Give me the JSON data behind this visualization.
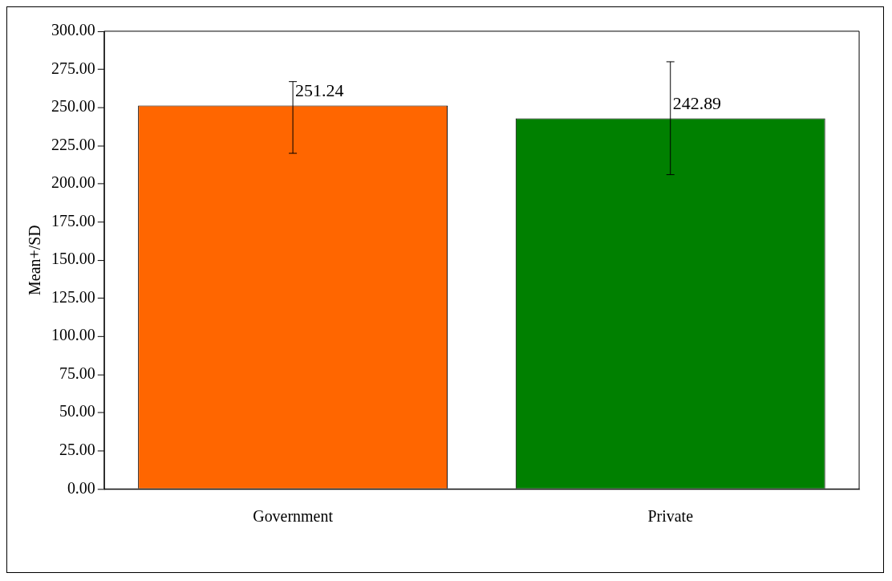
{
  "chart_data": {
    "type": "bar",
    "ylabel": "Mean+/SD",
    "categories": [
      "Government",
      "Private"
    ],
    "values": [
      251.24,
      242.89
    ],
    "colors": [
      "#ff6600",
      "#008000"
    ],
    "errors": [
      [
        220,
        267
      ],
      [
        206,
        280
      ]
    ],
    "data_labels": true,
    "ylim": [
      0,
      300
    ],
    "yticks": [
      {
        "value": 0,
        "label": "0.00"
      },
      {
        "value": 25,
        "label": "25.00"
      },
      {
        "value": 50,
        "label": "50.00"
      },
      {
        "value": 75,
        "label": "75.00"
      },
      {
        "value": 100,
        "label": "100.00"
      },
      {
        "value": 125,
        "label": "125.00"
      },
      {
        "value": 150,
        "label": "150.00"
      },
      {
        "value": 175,
        "label": "175.00"
      },
      {
        "value": 200,
        "label": "200.00"
      },
      {
        "value": 225,
        "label": "225.00"
      },
      {
        "value": 250,
        "label": "250.00"
      },
      {
        "value": 275,
        "label": "275.00"
      },
      {
        "value": 300,
        "label": "300.00"
      }
    ],
    "grid": false,
    "legend": false
  }
}
